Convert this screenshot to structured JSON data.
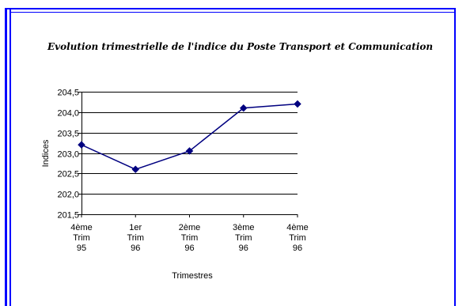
{
  "chart_data": {
    "type": "line",
    "title": "Evolution trimestrielle de l'indice du Poste Transport et Communication",
    "xlabel": "Trimestres",
    "ylabel": "Indices",
    "categories": [
      [
        "4ème",
        "Trim",
        "95"
      ],
      [
        "1er",
        "Trim",
        "96"
      ],
      [
        "2ème",
        "Trim",
        "96"
      ],
      [
        "3ème",
        "Trim",
        "96"
      ],
      [
        "4ème",
        "Trim",
        "96"
      ]
    ],
    "series": [
      {
        "values": [
          203.2,
          202.6,
          203.05,
          204.1,
          204.2
        ],
        "color": "#000080"
      }
    ],
    "ylim": [
      201.5,
      204.5
    ],
    "yticks": [
      "201,5",
      "202,0",
      "202,5",
      "203,0",
      "203,5",
      "204,0",
      "204,5"
    ],
    "grid": true,
    "legend": "none"
  },
  "colors": {
    "border": "#0000ff",
    "line": "#000080"
  }
}
